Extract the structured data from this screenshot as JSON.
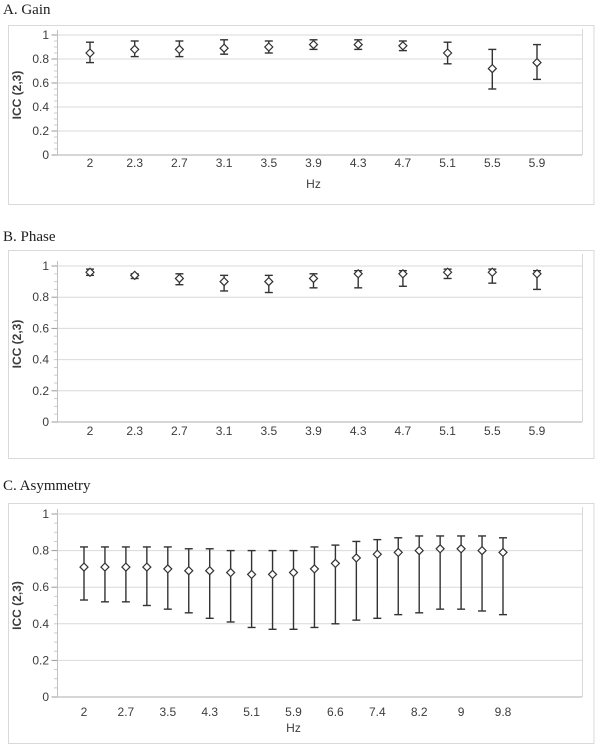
{
  "styles": {
    "grid_color": "#d9d9d9",
    "axis_line_color": "#c0c0c0",
    "zero_axis_color": "#aeaeae",
    "major_tick_color": "#9a9a9a",
    "minor_tick_color": "#cccccc",
    "box_border_color": "#d9d9d9",
    "errorbar_color": "#333333",
    "marker_stroke": "#333333",
    "marker_fill": "#ffffff"
  },
  "chart_data": [
    {
      "type": "scatter",
      "subtype": "means-with-error-bars",
      "title": "A. Gain",
      "ylabel": "ICC (2,3)",
      "xlabel": "Hz",
      "ylim": [
        0,
        1
      ],
      "grid": true,
      "marker": "open-diamond",
      "ytick_labels": [
        "0",
        "0.2",
        "0.4",
        "0.6",
        "0.8",
        "1"
      ],
      "yticks": [
        0,
        0.2,
        0.4,
        0.6,
        0.8,
        1
      ],
      "categories": [
        "2",
        "2.3",
        "2.7",
        "3.1",
        "3.5",
        "3.9",
        "4.3",
        "4.7",
        "5.1",
        "5.5",
        "5.9"
      ],
      "points": [
        {
          "y": 0.85,
          "lo": 0.77,
          "hi": 0.94
        },
        {
          "y": 0.88,
          "lo": 0.82,
          "hi": 0.95
        },
        {
          "y": 0.88,
          "lo": 0.82,
          "hi": 0.95
        },
        {
          "y": 0.89,
          "lo": 0.84,
          "hi": 0.96
        },
        {
          "y": 0.9,
          "lo": 0.85,
          "hi": 0.95
        },
        {
          "y": 0.92,
          "lo": 0.88,
          "hi": 0.96
        },
        {
          "y": 0.92,
          "lo": 0.88,
          "hi": 0.96
        },
        {
          "y": 0.91,
          "lo": 0.87,
          "hi": 0.95
        },
        {
          "y": 0.85,
          "lo": 0.76,
          "hi": 0.94
        },
        {
          "y": 0.72,
          "lo": 0.55,
          "hi": 0.88
        },
        {
          "y": 0.77,
          "lo": 0.63,
          "hi": 0.92
        }
      ]
    },
    {
      "type": "scatter",
      "subtype": "means-with-error-bars",
      "title": "B. Phase",
      "ylabel": "ICC (2,3)",
      "xlabel": "",
      "ylim": [
        0,
        1
      ],
      "grid": true,
      "marker": "open-diamond",
      "ytick_labels": [
        "0",
        "0.2",
        "0.4",
        "0.6",
        "0.8",
        "1"
      ],
      "yticks": [
        0,
        0.2,
        0.4,
        0.6,
        0.8,
        1
      ],
      "categories": [
        "2",
        "2.3",
        "2.7",
        "3.1",
        "3.5",
        "3.9",
        "4.3",
        "4.7",
        "5.1",
        "5.5",
        "5.9"
      ],
      "points": [
        {
          "y": 0.96,
          "lo": 0.94,
          "hi": 0.98
        },
        {
          "y": 0.94,
          "lo": 0.92,
          "hi": 0.95
        },
        {
          "y": 0.92,
          "lo": 0.88,
          "hi": 0.95
        },
        {
          "y": 0.9,
          "lo": 0.84,
          "hi": 0.94
        },
        {
          "y": 0.9,
          "lo": 0.83,
          "hi": 0.94
        },
        {
          "y": 0.92,
          "lo": 0.86,
          "hi": 0.95
        },
        {
          "y": 0.95,
          "lo": 0.86,
          "hi": 0.97
        },
        {
          "y": 0.95,
          "lo": 0.87,
          "hi": 0.97
        },
        {
          "y": 0.96,
          "lo": 0.92,
          "hi": 0.98
        },
        {
          "y": 0.96,
          "lo": 0.89,
          "hi": 0.98
        },
        {
          "y": 0.95,
          "lo": 0.85,
          "hi": 0.97
        }
      ]
    },
    {
      "type": "scatter",
      "subtype": "means-with-error-bars",
      "title": "C. Asymmetry",
      "ylabel": "ICC (2,3)",
      "xlabel": "Hz",
      "ylim": [
        0,
        1
      ],
      "grid": true,
      "marker": "open-diamond",
      "ytick_labels": [
        "0",
        "0.2",
        "0.4",
        "0.6",
        "0.8",
        "1"
      ],
      "yticks": [
        0,
        0.2,
        0.4,
        0.6,
        0.8,
        1
      ],
      "categories": [
        "2",
        "",
        "2.7",
        "",
        "3.5",
        "",
        "4.3",
        "",
        "5.1",
        "",
        "5.9",
        "",
        "6.6",
        "",
        "7.4",
        "",
        "8.2",
        "",
        "9",
        "",
        "9.8"
      ],
      "points": [
        {
          "y": 0.71,
          "lo": 0.53,
          "hi": 0.82
        },
        {
          "y": 0.71,
          "lo": 0.52,
          "hi": 0.82
        },
        {
          "y": 0.71,
          "lo": 0.52,
          "hi": 0.82
        },
        {
          "y": 0.71,
          "lo": 0.5,
          "hi": 0.82
        },
        {
          "y": 0.7,
          "lo": 0.48,
          "hi": 0.82
        },
        {
          "y": 0.69,
          "lo": 0.46,
          "hi": 0.81
        },
        {
          "y": 0.69,
          "lo": 0.43,
          "hi": 0.81
        },
        {
          "y": 0.68,
          "lo": 0.41,
          "hi": 0.8
        },
        {
          "y": 0.67,
          "lo": 0.38,
          "hi": 0.8
        },
        {
          "y": 0.67,
          "lo": 0.37,
          "hi": 0.8
        },
        {
          "y": 0.68,
          "lo": 0.37,
          "hi": 0.8
        },
        {
          "y": 0.7,
          "lo": 0.38,
          "hi": 0.82
        },
        {
          "y": 0.73,
          "lo": 0.4,
          "hi": 0.83
        },
        {
          "y": 0.76,
          "lo": 0.42,
          "hi": 0.85
        },
        {
          "y": 0.78,
          "lo": 0.43,
          "hi": 0.86
        },
        {
          "y": 0.79,
          "lo": 0.45,
          "hi": 0.87
        },
        {
          "y": 0.8,
          "lo": 0.46,
          "hi": 0.88
        },
        {
          "y": 0.81,
          "lo": 0.48,
          "hi": 0.88
        },
        {
          "y": 0.81,
          "lo": 0.48,
          "hi": 0.88
        },
        {
          "y": 0.8,
          "lo": 0.47,
          "hi": 0.88
        },
        {
          "y": 0.79,
          "lo": 0.45,
          "hi": 0.87
        }
      ]
    }
  ]
}
